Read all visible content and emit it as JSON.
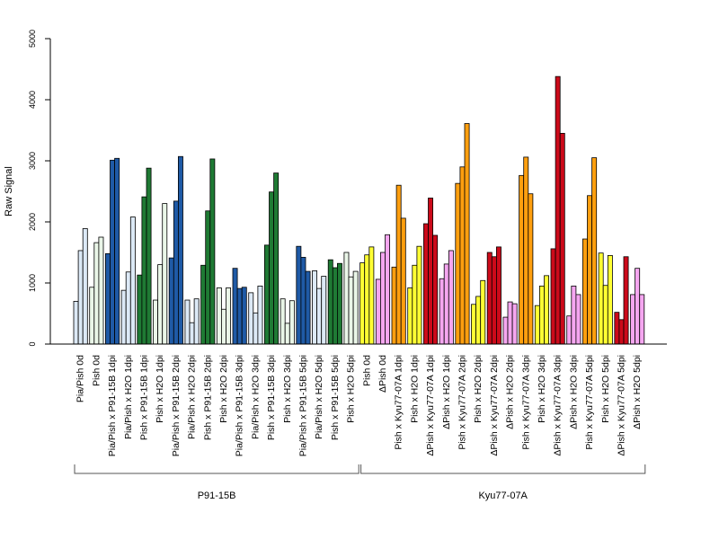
{
  "chart_data": {
    "type": "bar",
    "ylabel": "Raw Signal",
    "ylim": [
      0,
      5000
    ],
    "yticks": [
      0,
      1000,
      2000,
      3000,
      4000,
      5000
    ],
    "groups": [
      {
        "label": "Pia/Pish 0d",
        "values": [
          700,
          1530,
          1890
        ],
        "color": "#dce9f6"
      },
      {
        "label": "Pish 0d",
        "values": [
          930,
          1660,
          1750
        ],
        "color": "#eaf6e8"
      },
      {
        "label": "Pia/Pish x P91-15B 1dpi",
        "values": [
          1480,
          3010,
          3040
        ],
        "color": "#1f5aa6"
      },
      {
        "label": "Pia/Pish x H2O 1dpi",
        "values": [
          880,
          1180,
          2080
        ],
        "color": "#dce9f6"
      },
      {
        "label": "Pish x P91-15B 1dpi",
        "values": [
          1130,
          2410,
          2880
        ],
        "color": "#1f7a34"
      },
      {
        "label": "Pish x H2O 1dpi",
        "values": [
          720,
          1300,
          2300
        ],
        "color": "#eaf6e8"
      },
      {
        "label": "Pia/Pish x P91-15B 2dpi",
        "values": [
          1410,
          2340,
          3070
        ],
        "color": "#1f5aa6"
      },
      {
        "label": "Pia/Pish x H2O 2dpi",
        "values": [
          720,
          350,
          740
        ],
        "color": "#dce9f6"
      },
      {
        "label": "Pish x P91-15B 2dpi",
        "values": [
          1290,
          2180,
          3030
        ],
        "color": "#1f7a34"
      },
      {
        "label": "Pish x H2O 2dpi",
        "values": [
          920,
          570,
          920
        ],
        "color": "#eaf6e8"
      },
      {
        "label": "Pia/Pish x P91-15B 3dpi",
        "values": [
          1240,
          910,
          930
        ],
        "color": "#1f5aa6"
      },
      {
        "label": "Pia/Pish x H2O 3dpi",
        "values": [
          840,
          510,
          950
        ],
        "color": "#dce9f6"
      },
      {
        "label": "Pish x P91-15B 3dpi",
        "values": [
          1620,
          2490,
          2800
        ],
        "color": "#1f7a34"
      },
      {
        "label": "Pish x H2O 3dpi",
        "values": [
          740,
          340,
          710
        ],
        "color": "#eaf6e8"
      },
      {
        "label": "Pia/Pish x P91-15B 5dpi",
        "values": [
          1600,
          1420,
          1190
        ],
        "color": "#1f5aa6"
      },
      {
        "label": "Pia/Pish x H2O 5dpi",
        "values": [
          1200,
          910,
          1110
        ],
        "color": "#dce9f6"
      },
      {
        "label": "Pish x P91-15B 5dpi",
        "values": [
          1380,
          1250,
          1320
        ],
        "color": "#1f7a34"
      },
      {
        "label": "Pish x H2O 5dpi",
        "values": [
          1500,
          1100,
          1190
        ],
        "color": "#eaf6e8"
      },
      {
        "label": "Pish 0d",
        "values": [
          1330,
          1460,
          1590
        ],
        "color": "#ffff33"
      },
      {
        "label": "ΔPish 0d",
        "values": [
          1060,
          1500,
          1790
        ],
        "color": "#f5a6f0"
      },
      {
        "label": "Pish x Kyu77-07A 1dpi",
        "values": [
          1260,
          2600,
          2060
        ],
        "color": "#ff9f0f"
      },
      {
        "label": "Pish x H2O 1dpi",
        "values": [
          920,
          1290,
          1600
        ],
        "color": "#ffff33"
      },
      {
        "label": "ΔPish x Kyu77-07A 1dpi",
        "values": [
          1970,
          2390,
          1780
        ],
        "color": "#cc0a1a"
      },
      {
        "label": "ΔPish x H2O 1dpi",
        "values": [
          1070,
          1310,
          1530
        ],
        "color": "#f5a6f0"
      },
      {
        "label": "Pish x Kyu77-07A 2dpi",
        "values": [
          2630,
          2900,
          3610
        ],
        "color": "#ff9f0f"
      },
      {
        "label": "Pish x H2O 2dpi",
        "values": [
          650,
          780,
          1040
        ],
        "color": "#ffff33"
      },
      {
        "label": "ΔPish x Kyu77-07A 2dpi",
        "values": [
          1500,
          1430,
          1590
        ],
        "color": "#cc0a1a"
      },
      {
        "label": "ΔPish x H2O 2dpi",
        "values": [
          440,
          690,
          660
        ],
        "color": "#f5a6f0"
      },
      {
        "label": "Pish x Kyu77-07A 3dpi",
        "values": [
          2760,
          3060,
          2460
        ],
        "color": "#ff9f0f"
      },
      {
        "label": "Pish x H2O 3dpi",
        "values": [
          630,
          950,
          1120
        ],
        "color": "#ffff33"
      },
      {
        "label": "ΔPish x Kyu77-07A 3dpi",
        "values": [
          1560,
          4380,
          3450
        ],
        "color": "#cc0a1a"
      },
      {
        "label": "ΔPish x H2O 3dpi",
        "values": [
          460,
          950,
          810
        ],
        "color": "#f5a6f0"
      },
      {
        "label": "Pish x Kyu77-07A 5dpi",
        "values": [
          1720,
          2430,
          3050
        ],
        "color": "#ff9f0f"
      },
      {
        "label": "Pish x H2O 5dpi",
        "values": [
          1490,
          960,
          1450
        ],
        "color": "#ffff33"
      },
      {
        "label": "ΔPish x Kyu77-07A 5dpi",
        "values": [
          520,
          400,
          1430
        ],
        "color": "#cc0a1a"
      },
      {
        "label": "ΔPish x H2O 5dpi",
        "values": [
          810,
          1240,
          810
        ],
        "color": "#f5a6f0"
      }
    ],
    "sections": [
      {
        "label": "P91-15B",
        "first_group": 0,
        "last_group": 17
      },
      {
        "label": "Kyu77-07A",
        "first_group": 18,
        "last_group": 35
      }
    ]
  }
}
